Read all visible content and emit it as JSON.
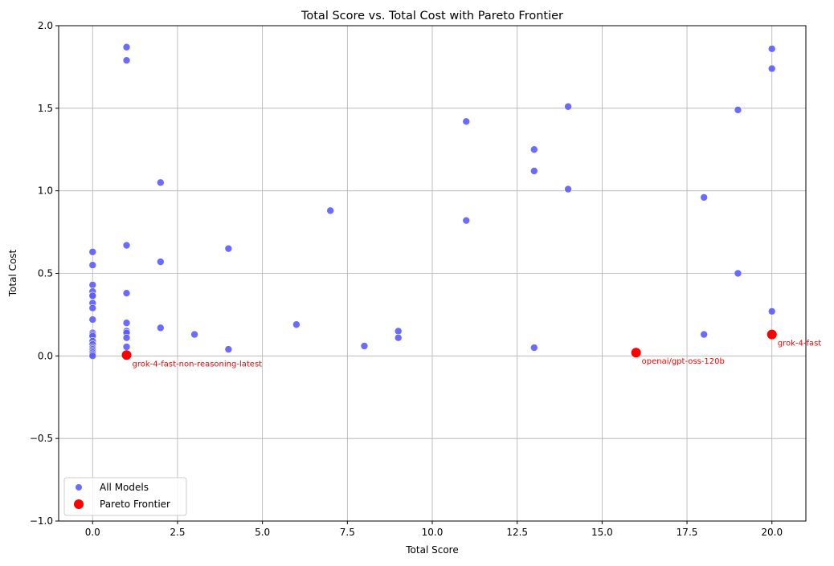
{
  "chart_data": {
    "type": "scatter",
    "title": "Total Score vs. Total Cost with Pareto Frontier",
    "xlabel": "Total Score",
    "ylabel": "Total Cost",
    "xlim": [
      -1,
      21
    ],
    "ylim": [
      -1,
      2
    ],
    "xticks": [
      0,
      2.5,
      5,
      7.5,
      10,
      12.5,
      15,
      17.5,
      20
    ],
    "xtick_labels": [
      "0.0",
      "2.5",
      "5.0",
      "7.5",
      "10.0",
      "12.5",
      "15.0",
      "17.5",
      "20.0"
    ],
    "yticks": [
      -1,
      -0.5,
      0,
      0.5,
      1,
      1.5,
      2
    ],
    "ytick_labels": [
      "−1.0",
      "−0.5",
      "0.0",
      "0.5",
      "1.0",
      "1.5",
      "2.0"
    ],
    "grid": true,
    "legend_position": "lower-left",
    "series": [
      {
        "name": "All Models",
        "color": "#5b5bff",
        "points": [
          [
            0,
            0.63
          ],
          [
            0,
            0.55
          ],
          [
            0,
            0.43
          ],
          [
            0,
            0.39
          ],
          [
            0,
            0.36
          ],
          [
            0,
            0.365
          ],
          [
            0,
            0.32
          ],
          [
            0,
            0.29
          ],
          [
            0,
            0.22
          ],
          [
            0,
            0.14
          ],
          [
            0,
            0.13
          ],
          [
            0,
            0.12
          ],
          [
            0,
            0.09
          ],
          [
            0,
            0.07
          ],
          [
            0,
            0.05
          ],
          [
            0,
            0.04
          ],
          [
            0,
            0.03
          ],
          [
            0,
            0.02
          ],
          [
            0,
            0.01
          ],
          [
            0,
            0.0
          ],
          [
            1,
            1.87
          ],
          [
            1,
            1.79
          ],
          [
            1,
            0.67
          ],
          [
            1,
            0.38
          ],
          [
            1,
            0.2
          ],
          [
            1,
            0.15
          ],
          [
            1,
            0.14
          ],
          [
            1,
            0.11
          ],
          [
            1,
            0.055
          ],
          [
            2,
            1.05
          ],
          [
            2,
            0.57
          ],
          [
            2,
            0.17
          ],
          [
            3,
            0.13
          ],
          [
            4,
            0.65
          ],
          [
            4,
            0.04
          ],
          [
            6,
            0.19
          ],
          [
            7,
            0.88
          ],
          [
            8,
            0.06
          ],
          [
            9,
            0.15
          ],
          [
            9,
            0.11
          ],
          [
            11,
            1.42
          ],
          [
            11,
            0.82
          ],
          [
            13,
            1.25
          ],
          [
            13,
            1.12
          ],
          [
            13,
            0.05
          ],
          [
            14,
            1.51
          ],
          [
            14,
            1.01
          ],
          [
            18,
            0.96
          ],
          [
            18,
            0.13
          ],
          [
            19,
            1.49
          ],
          [
            19,
            0.5
          ],
          [
            20,
            1.86
          ],
          [
            20,
            1.74
          ],
          [
            20,
            0.27
          ]
        ]
      },
      {
        "name": "Pareto Frontier",
        "color": "#ff0000",
        "points": [
          [
            1,
            0.005
          ],
          [
            16,
            0.02
          ],
          [
            20,
            0.13
          ]
        ],
        "labels": [
          "grok-4-fast-non-reasoning-latest",
          "openai/gpt-oss-120b",
          "grok-4-fast"
        ]
      }
    ]
  }
}
